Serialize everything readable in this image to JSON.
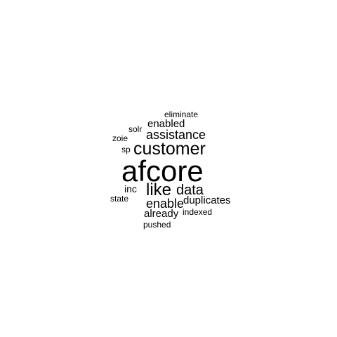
{
  "text_color": "#000000",
  "background_color": "#ffffff",
  "words": [
    "eliminate",
    "enabled",
    "solr",
    "assistance",
    "zoie",
    "sp",
    "customer",
    "afcore",
    "inc",
    "like",
    "data",
    "state",
    "enable",
    "duplicates",
    "already",
    "indexed",
    "pushed"
  ]
}
